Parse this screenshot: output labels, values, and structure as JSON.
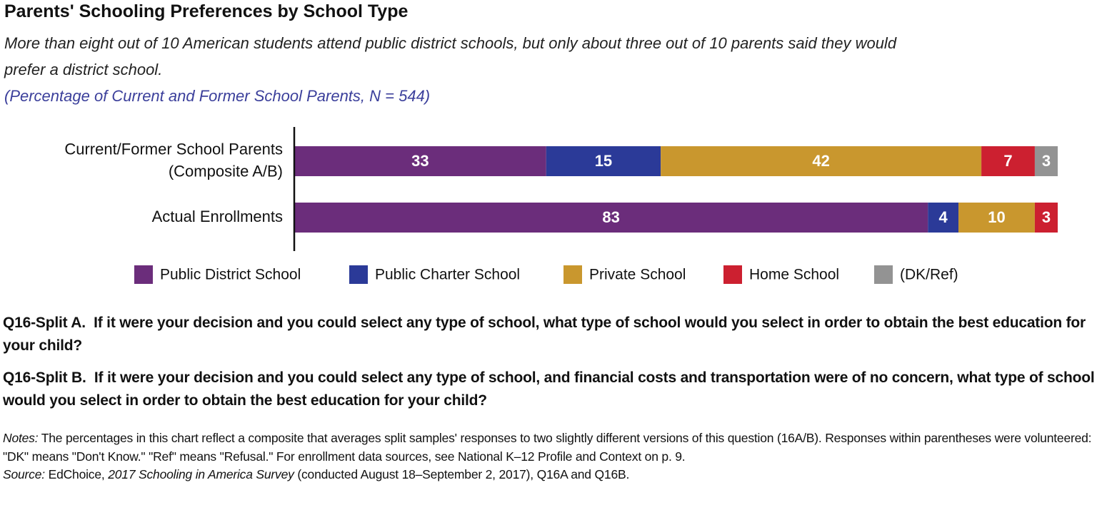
{
  "chart_data": {
    "type": "stacked-bar-horizontal",
    "title": "Parents' Schooling Preferences by School Type",
    "subtitle": "More than eight out of 10 American students attend public district schools, but only about three out of 10 parents said they would prefer a district school.",
    "subtitle2": "(Percentage of Current and Former School Parents, N = 544)",
    "categories": [
      [
        "Current/Former School Parents",
        "(Composite A/B)"
      ],
      [
        "Actual Enrollments"
      ]
    ],
    "xlim": [
      0,
      100
    ],
    "series": [
      {
        "name": "Public District School",
        "color": "#6b2d7b",
        "values": [
          33,
          83
        ]
      },
      {
        "name": "Public Charter School",
        "color": "#2b3a98",
        "values": [
          15,
          4
        ]
      },
      {
        "name": "Private School",
        "color": "#c9972e",
        "values": [
          42,
          10
        ]
      },
      {
        "name": "Home School",
        "color": "#cc2030",
        "values": [
          7,
          3
        ]
      },
      {
        "name": "(DK/Ref)",
        "color": "#939393",
        "values": [
          3,
          null
        ]
      }
    ]
  },
  "questions": [
    {
      "label": "Q16-Split A.",
      "text": "If it were your decision and you could select any type of school, what type of school would you select in order to obtain the best education for your child?"
    },
    {
      "label": "Q16-Split B.",
      "text": "If it were your decision and you could select any type of school, and financial costs and transportation were of no concern, what type of school would you select in order to obtain the best education for your child?"
    }
  ],
  "notes": {
    "label": "Notes:",
    "text": "The percentages in this chart reflect a composite that averages split samples' responses to two slightly different versions of this question (16A/B). Responses within parentheses were volunteered: \"DK\" means \"Don't Know.\" \"Ref\" means \"Refusal.\" For enrollment data sources, see National K–12 Profile and Context on p. 9.",
    "source_label": "Source:",
    "source_pre": "EdChoice,",
    "source_title": "2017 Schooling in America Survey",
    "source_post": "(conducted August 18–September 2, 2017), Q16A and Q16B."
  }
}
